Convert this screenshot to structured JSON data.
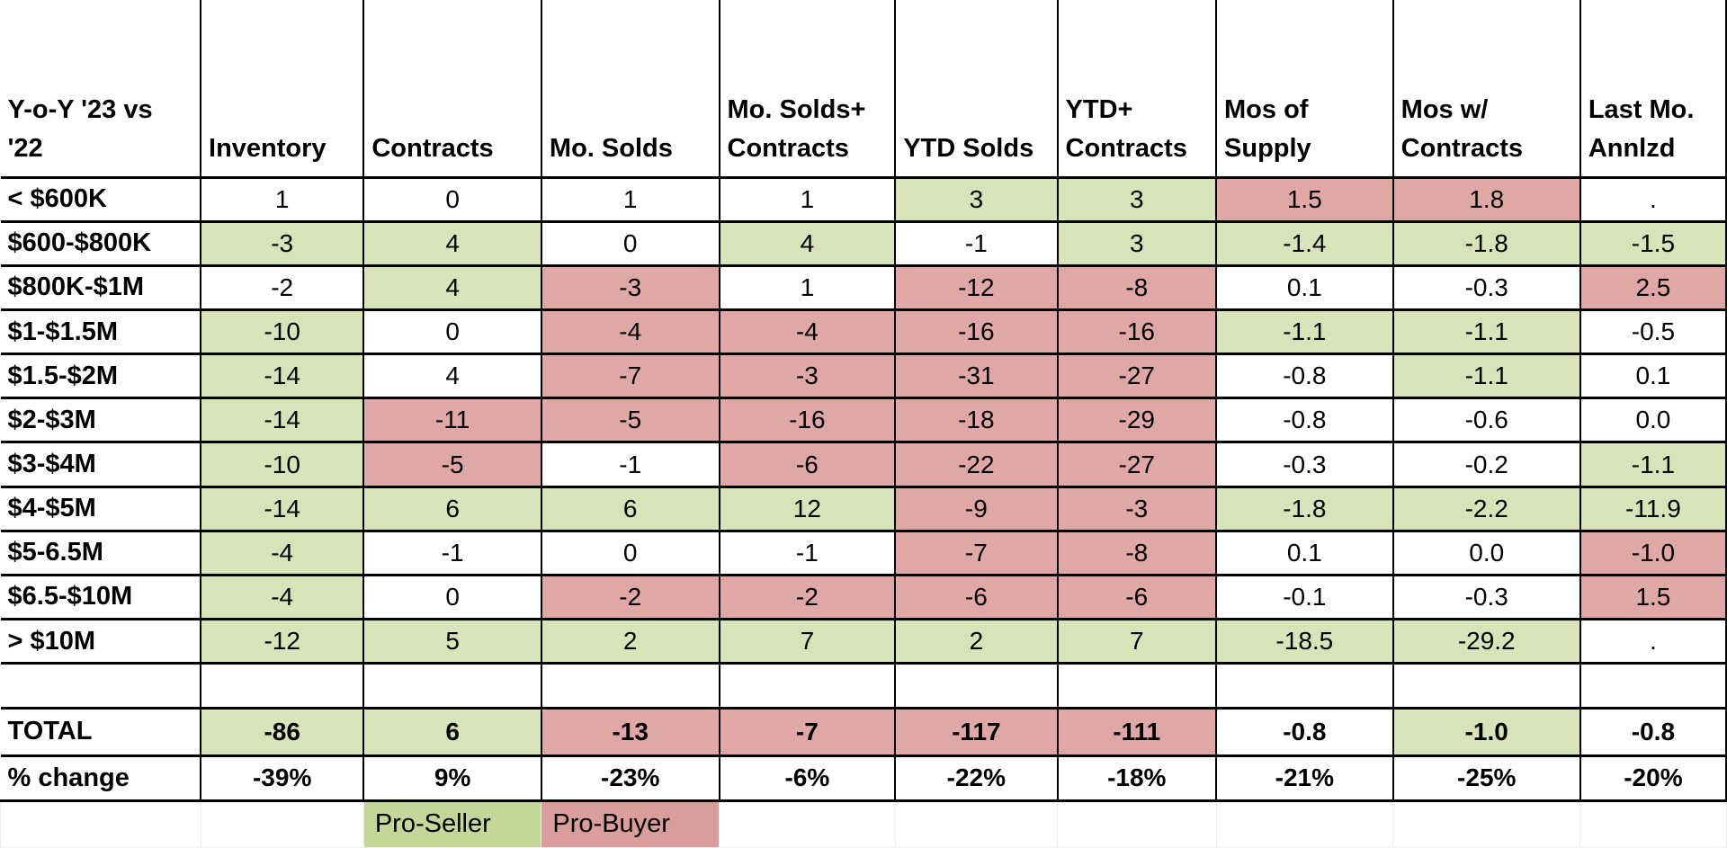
{
  "table": {
    "corner": [
      "Y-o-Y '23 vs",
      "'22"
    ],
    "column_headers": [
      [
        "Inventory"
      ],
      [
        "Contracts"
      ],
      [
        "Mo. Solds"
      ],
      [
        "Mo. Solds+",
        "Contracts"
      ],
      [
        "YTD Solds"
      ],
      [
        "YTD+",
        "Contracts"
      ],
      [
        "Mos of",
        "Supply"
      ],
      [
        "Mos w/",
        "Contracts"
      ],
      [
        "Last Mo.",
        "Annlzd"
      ]
    ],
    "rows": [
      {
        "kind": "data",
        "label": "< $600K",
        "cells": [
          {
            "v": "1",
            "c": ""
          },
          {
            "v": "0",
            "c": ""
          },
          {
            "v": "1",
            "c": ""
          },
          {
            "v": "1",
            "c": ""
          },
          {
            "v": "3",
            "c": "g"
          },
          {
            "v": "3",
            "c": "g"
          },
          {
            "v": "1.5",
            "c": "r"
          },
          {
            "v": "1.8",
            "c": "r"
          },
          {
            "v": ".",
            "c": ""
          }
        ]
      },
      {
        "kind": "data",
        "label": "$600-$800K",
        "cells": [
          {
            "v": "-3",
            "c": "g"
          },
          {
            "v": "4",
            "c": "g"
          },
          {
            "v": "0",
            "c": ""
          },
          {
            "v": "4",
            "c": "g"
          },
          {
            "v": "-1",
            "c": ""
          },
          {
            "v": "3",
            "c": "g"
          },
          {
            "v": "-1.4",
            "c": "g"
          },
          {
            "v": "-1.8",
            "c": "g"
          },
          {
            "v": "-1.5",
            "c": "g"
          }
        ]
      },
      {
        "kind": "data",
        "label": "$800K-$1M",
        "cells": [
          {
            "v": "-2",
            "c": ""
          },
          {
            "v": "4",
            "c": "g"
          },
          {
            "v": "-3",
            "c": "r"
          },
          {
            "v": "1",
            "c": ""
          },
          {
            "v": "-12",
            "c": "r"
          },
          {
            "v": "-8",
            "c": "r"
          },
          {
            "v": "0.1",
            "c": ""
          },
          {
            "v": "-0.3",
            "c": ""
          },
          {
            "v": "2.5",
            "c": "r"
          }
        ]
      },
      {
        "kind": "data",
        "label": "$1-$1.5M",
        "cells": [
          {
            "v": "-10",
            "c": "g"
          },
          {
            "v": "0",
            "c": ""
          },
          {
            "v": "-4",
            "c": "r"
          },
          {
            "v": "-4",
            "c": "r"
          },
          {
            "v": "-16",
            "c": "r"
          },
          {
            "v": "-16",
            "c": "r"
          },
          {
            "v": "-1.1",
            "c": "g"
          },
          {
            "v": "-1.1",
            "c": "g"
          },
          {
            "v": "-0.5",
            "c": ""
          }
        ]
      },
      {
        "kind": "data",
        "label": "$1.5-$2M",
        "cells": [
          {
            "v": "-14",
            "c": "g"
          },
          {
            "v": "4",
            "c": ""
          },
          {
            "v": "-7",
            "c": "r"
          },
          {
            "v": "-3",
            "c": "r"
          },
          {
            "v": "-31",
            "c": "r"
          },
          {
            "v": "-27",
            "c": "r"
          },
          {
            "v": "-0.8",
            "c": ""
          },
          {
            "v": "-1.1",
            "c": "g"
          },
          {
            "v": "0.1",
            "c": ""
          }
        ]
      },
      {
        "kind": "data",
        "label": "$2-$3M",
        "cells": [
          {
            "v": "-14",
            "c": "g"
          },
          {
            "v": "-11",
            "c": "r"
          },
          {
            "v": "-5",
            "c": "r"
          },
          {
            "v": "-16",
            "c": "r"
          },
          {
            "v": "-18",
            "c": "r"
          },
          {
            "v": "-29",
            "c": "r"
          },
          {
            "v": "-0.8",
            "c": ""
          },
          {
            "v": "-0.6",
            "c": ""
          },
          {
            "v": "0.0",
            "c": ""
          }
        ]
      },
      {
        "kind": "data",
        "label": "$3-$4M",
        "cells": [
          {
            "v": "-10",
            "c": "g"
          },
          {
            "v": "-5",
            "c": "r"
          },
          {
            "v": "-1",
            "c": ""
          },
          {
            "v": "-6",
            "c": "r"
          },
          {
            "v": "-22",
            "c": "r"
          },
          {
            "v": "-27",
            "c": "r"
          },
          {
            "v": "-0.3",
            "c": ""
          },
          {
            "v": "-0.2",
            "c": ""
          },
          {
            "v": "-1.1",
            "c": "g"
          }
        ]
      },
      {
        "kind": "data",
        "label": "$4-$5M",
        "cells": [
          {
            "v": "-14",
            "c": "g"
          },
          {
            "v": "6",
            "c": "g"
          },
          {
            "v": "6",
            "c": "g"
          },
          {
            "v": "12",
            "c": "g"
          },
          {
            "v": "-9",
            "c": "r"
          },
          {
            "v": "-3",
            "c": "r"
          },
          {
            "v": "-1.8",
            "c": "g"
          },
          {
            "v": "-2.2",
            "c": "g"
          },
          {
            "v": "-11.9",
            "c": "g"
          }
        ]
      },
      {
        "kind": "data",
        "label": "$5-6.5M",
        "cells": [
          {
            "v": "-4",
            "c": "g"
          },
          {
            "v": "-1",
            "c": ""
          },
          {
            "v": "0",
            "c": ""
          },
          {
            "v": "-1",
            "c": ""
          },
          {
            "v": "-7",
            "c": "r"
          },
          {
            "v": "-8",
            "c": "r"
          },
          {
            "v": "0.1",
            "c": ""
          },
          {
            "v": "0.0",
            "c": ""
          },
          {
            "v": "-1.0",
            "c": "r"
          }
        ]
      },
      {
        "kind": "data",
        "label": "$6.5-$10M",
        "cells": [
          {
            "v": "-4",
            "c": "g"
          },
          {
            "v": "0",
            "c": ""
          },
          {
            "v": "-2",
            "c": "r"
          },
          {
            "v": "-2",
            "c": "r"
          },
          {
            "v": "-6",
            "c": "r"
          },
          {
            "v": "-6",
            "c": "r"
          },
          {
            "v": "-0.1",
            "c": ""
          },
          {
            "v": "-0.3",
            "c": ""
          },
          {
            "v": "1.5",
            "c": "r"
          }
        ]
      },
      {
        "kind": "data",
        "label": "> $10M",
        "cells": [
          {
            "v": "-12",
            "c": "g"
          },
          {
            "v": "5",
            "c": "g"
          },
          {
            "v": "2",
            "c": "g"
          },
          {
            "v": "7",
            "c": "g"
          },
          {
            "v": "2",
            "c": "g"
          },
          {
            "v": "7",
            "c": "g"
          },
          {
            "v": "-18.5",
            "c": "g"
          },
          {
            "v": "-29.2",
            "c": "g"
          },
          {
            "v": ".",
            "c": ""
          }
        ]
      },
      {
        "kind": "empty",
        "label": "",
        "cells": [
          {
            "v": "",
            "c": ""
          },
          {
            "v": "",
            "c": ""
          },
          {
            "v": "",
            "c": ""
          },
          {
            "v": "",
            "c": ""
          },
          {
            "v": "",
            "c": ""
          },
          {
            "v": "",
            "c": ""
          },
          {
            "v": "",
            "c": ""
          },
          {
            "v": "",
            "c": ""
          },
          {
            "v": "",
            "c": ""
          }
        ]
      },
      {
        "kind": "total",
        "label": "TOTAL",
        "cells": [
          {
            "v": "-86",
            "c": "g"
          },
          {
            "v": "6",
            "c": "g"
          },
          {
            "v": "-13",
            "c": "r"
          },
          {
            "v": "-7",
            "c": "r"
          },
          {
            "v": "-117",
            "c": "r"
          },
          {
            "v": "-111",
            "c": "r"
          },
          {
            "v": "-0.8",
            "c": ""
          },
          {
            "v": "-1.0",
            "c": "g"
          },
          {
            "v": "-0.8",
            "c": ""
          }
        ]
      },
      {
        "kind": "pct",
        "label": "% change",
        "cells": [
          {
            "v": "-39%",
            "c": ""
          },
          {
            "v": "9%",
            "c": ""
          },
          {
            "v": "-23%",
            "c": ""
          },
          {
            "v": "-6%",
            "c": ""
          },
          {
            "v": "-22%",
            "c": ""
          },
          {
            "v": "-18%",
            "c": ""
          },
          {
            "v": "-21%",
            "c": ""
          },
          {
            "v": "-25%",
            "c": ""
          },
          {
            "v": "-20%",
            "c": ""
          }
        ]
      },
      {
        "kind": "legend",
        "label": "",
        "cells": [
          {
            "v": "",
            "c": ""
          },
          {
            "v": "Pro-Seller",
            "c": "lg"
          },
          {
            "v": "Pro-Buyer",
            "c": "lp"
          },
          {
            "v": "",
            "c": ""
          },
          {
            "v": "",
            "c": ""
          },
          {
            "v": "",
            "c": ""
          },
          {
            "v": "",
            "c": ""
          },
          {
            "v": "",
            "c": ""
          },
          {
            "v": "",
            "c": ""
          }
        ]
      }
    ],
    "legend": {
      "pro_seller_label": "Pro-Seller",
      "pro_buyer_label": "Pro-Buyer"
    }
  },
  "colors": {
    "cell_green": "#d8e3ba",
    "cell_pink": "#dfa8a6",
    "legend_green": "#c5d69b",
    "legend_pink": "#d99d9b",
    "border_black": "#000000",
    "gridline_gray": "#ececec",
    "text": "#000000"
  }
}
